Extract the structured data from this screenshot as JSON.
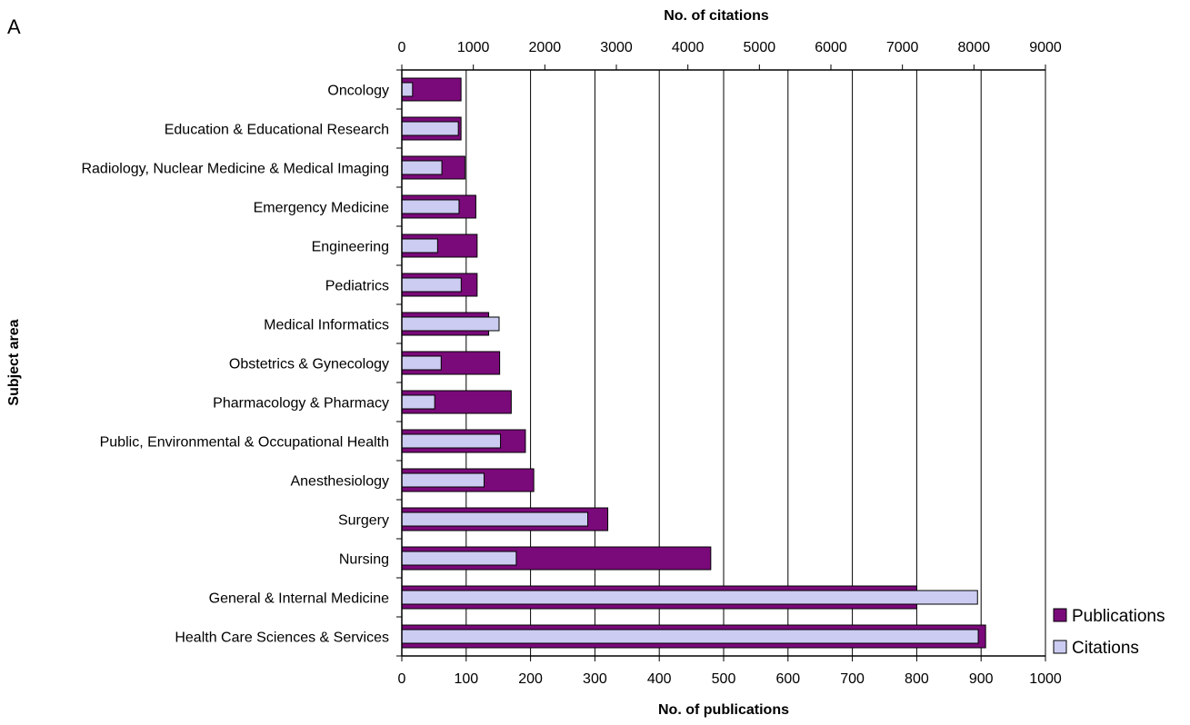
{
  "panel_label": "A",
  "colors": {
    "publications": "#7a0a7a",
    "citations": "#ccccf2",
    "bar_stroke": "#000000",
    "grid": "#000000"
  },
  "chart_data": {
    "type": "bar",
    "orientation": "horizontal",
    "title": "",
    "ylabel": "Subject area",
    "xlabel_bottom": "No. of publications",
    "xlabel_top": "No. of citations",
    "xlim_bottom": [
      0,
      1000
    ],
    "xticks_bottom": [
      0,
      100,
      200,
      300,
      400,
      500,
      600,
      700,
      800,
      900,
      1000
    ],
    "xlim_top": [
      0,
      9000
    ],
    "xticks_top": [
      0,
      1000,
      2000,
      3000,
      4000,
      5000,
      6000,
      7000,
      8000,
      9000
    ],
    "grid": "vertical major gridlines",
    "legend_position": "bottom-right",
    "categories": [
      "Oncology",
      "Education & Educational Research",
      "Radiology, Nuclear Medicine & Medical Imaging",
      "Emergency Medicine",
      "Engineering",
      "Pediatrics",
      "Medical Informatics",
      "Obstetrics & Gynecology",
      "Pharmacology & Pharmacy",
      "Public, Environmental & Occupational Health",
      "Anesthesiology",
      "Surgery",
      "Nursing",
      "General & Internal Medicine",
      "Health Care Sciences & Services"
    ],
    "series": [
      {
        "name": "Publications",
        "axis": "bottom",
        "values": [
          92,
          92,
          98,
          115,
          117,
          117,
          135,
          152,
          170,
          192,
          205,
          320,
          480,
          800,
          907
        ]
      },
      {
        "name": "Citations",
        "axis": "top",
        "values": [
          150,
          790,
          560,
          800,
          500,
          830,
          1360,
          550,
          460,
          1380,
          1150,
          2600,
          1600,
          8050,
          8060
        ]
      }
    ]
  }
}
